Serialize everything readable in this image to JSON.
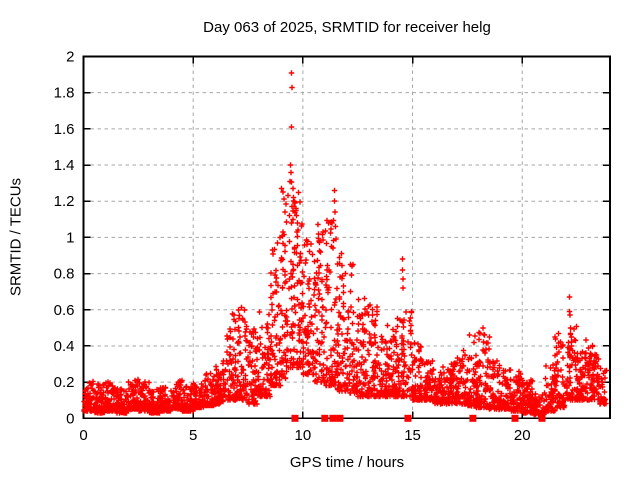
{
  "chart_data": {
    "type": "scatter",
    "title": "Day 063 of 2025, SRMTID for receiver helg",
    "xlabel": "GPS time / hours",
    "ylabel": "SRMTID / TECUs",
    "xlim": [
      0,
      24
    ],
    "ylim": [
      0,
      2
    ],
    "xticks": [
      0,
      5,
      10,
      15,
      20
    ],
    "yticks": [
      0,
      0.2,
      0.4,
      0.6,
      0.8,
      1,
      1.2,
      1.4,
      1.6,
      1.8,
      2
    ],
    "grid": true,
    "legend_position": "none",
    "marker": "plus",
    "marker_color": "#ff0000",
    "axis_color": "#000000",
    "grid_color": "#a6a6a6",
    "background": "#ffffff",
    "series": [
      {
        "name": "SRMTID",
        "encoding": "density_bins",
        "bins_format": [
          "hour_start",
          "hour_end",
          "y_min",
          "y_max",
          "count",
          "spread_exp"
        ],
        "bins": [
          [
            0.0,
            0.5,
            0.04,
            0.22,
            70,
            2.1
          ],
          [
            0.5,
            1.0,
            0.03,
            0.19,
            70,
            2.1
          ],
          [
            1.0,
            1.5,
            0.04,
            0.2,
            70,
            2.1
          ],
          [
            1.5,
            2.0,
            0.03,
            0.17,
            70,
            2.1
          ],
          [
            2.0,
            2.5,
            0.05,
            0.23,
            70,
            2.1
          ],
          [
            2.5,
            3.0,
            0.04,
            0.2,
            70,
            2.1
          ],
          [
            3.0,
            3.5,
            0.03,
            0.16,
            70,
            2.1
          ],
          [
            3.5,
            4.0,
            0.04,
            0.17,
            70,
            2.1
          ],
          [
            4.0,
            4.5,
            0.05,
            0.21,
            70,
            2.1
          ],
          [
            4.5,
            5.0,
            0.04,
            0.18,
            70,
            2.1
          ],
          [
            5.0,
            5.5,
            0.06,
            0.2,
            70,
            2.1
          ],
          [
            5.5,
            6.0,
            0.07,
            0.25,
            70,
            2.1
          ],
          [
            6.0,
            6.5,
            0.08,
            0.33,
            70,
            2.0
          ],
          [
            6.5,
            7.0,
            0.1,
            0.58,
            70,
            1.8
          ],
          [
            7.0,
            7.5,
            0.1,
            0.62,
            70,
            1.8
          ],
          [
            7.5,
            8.0,
            0.08,
            0.5,
            65,
            1.9
          ],
          [
            8.0,
            8.5,
            0.12,
            0.6,
            65,
            1.9
          ],
          [
            8.5,
            9.0,
            0.18,
            0.95,
            70,
            1.8
          ],
          [
            9.0,
            9.5,
            0.22,
            1.38,
            75,
            1.7
          ],
          [
            9.5,
            10.0,
            0.28,
            1.25,
            75,
            1.6
          ],
          [
            10.0,
            10.5,
            0.24,
            1.0,
            70,
            1.8
          ],
          [
            10.5,
            11.0,
            0.2,
            1.05,
            70,
            1.8
          ],
          [
            11.0,
            11.5,
            0.18,
            1.1,
            70,
            1.7
          ],
          [
            11.5,
            12.0,
            0.15,
            0.95,
            70,
            1.8
          ],
          [
            12.0,
            12.5,
            0.14,
            0.85,
            65,
            1.9
          ],
          [
            12.5,
            13.0,
            0.12,
            0.68,
            65,
            2.0
          ],
          [
            13.0,
            13.5,
            0.12,
            0.64,
            65,
            2.0
          ],
          [
            13.5,
            14.0,
            0.12,
            0.52,
            65,
            2.0
          ],
          [
            14.0,
            14.5,
            0.12,
            0.56,
            65,
            2.0
          ],
          [
            14.5,
            15.0,
            0.12,
            0.62,
            65,
            1.9
          ],
          [
            15.0,
            15.5,
            0.1,
            0.42,
            65,
            2.1
          ],
          [
            15.5,
            16.0,
            0.1,
            0.32,
            65,
            2.1
          ],
          [
            16.0,
            16.5,
            0.08,
            0.3,
            65,
            2.1
          ],
          [
            16.5,
            17.0,
            0.08,
            0.32,
            65,
            2.1
          ],
          [
            17.0,
            17.5,
            0.08,
            0.4,
            65,
            2.0
          ],
          [
            17.5,
            18.0,
            0.06,
            0.46,
            65,
            1.9
          ],
          [
            18.0,
            18.5,
            0.06,
            0.5,
            65,
            1.9
          ],
          [
            18.5,
            19.0,
            0.05,
            0.32,
            65,
            2.1
          ],
          [
            19.0,
            19.5,
            0.05,
            0.28,
            65,
            2.1
          ],
          [
            19.5,
            20.0,
            0.04,
            0.26,
            65,
            2.1
          ],
          [
            20.0,
            20.5,
            0.03,
            0.22,
            65,
            2.1
          ],
          [
            20.5,
            21.0,
            0.02,
            0.14,
            65,
            2.1
          ],
          [
            21.0,
            21.5,
            0.04,
            0.3,
            65,
            2.0
          ],
          [
            21.5,
            22.0,
            0.06,
            0.45,
            65,
            1.9
          ],
          [
            22.0,
            22.5,
            0.1,
            0.55,
            65,
            1.8
          ],
          [
            22.5,
            23.0,
            0.1,
            0.48,
            70,
            1.7
          ],
          [
            23.0,
            23.5,
            0.1,
            0.42,
            70,
            1.7
          ],
          [
            23.5,
            23.85,
            0.08,
            0.28,
            35,
            2.0
          ]
        ],
        "peak_points": [
          [
            9.49,
            1.91
          ],
          [
            9.5,
            1.83
          ],
          [
            9.49,
            1.61
          ],
          [
            9.44,
            1.4
          ],
          [
            9.46,
            1.36
          ],
          [
            9.41,
            1.31
          ],
          [
            9.55,
            1.27
          ],
          [
            9.58,
            1.22
          ],
          [
            9.63,
            1.19
          ],
          [
            9.69,
            1.16
          ],
          [
            9.72,
            1.12
          ],
          [
            9.76,
            1.08
          ],
          [
            9.78,
            1.04
          ],
          [
            9.1,
            1.03
          ],
          [
            8.95,
            1.0
          ],
          [
            10.68,
            1.07
          ],
          [
            10.71,
            1.02
          ],
          [
            10.73,
            0.98
          ],
          [
            11.44,
            1.26
          ],
          [
            11.45,
            1.2
          ],
          [
            11.47,
            1.14
          ],
          [
            11.49,
            1.06
          ],
          [
            11.52,
            0.99
          ],
          [
            11.3,
            0.95
          ],
          [
            14.53,
            0.88
          ],
          [
            14.54,
            0.82
          ],
          [
            14.56,
            0.77
          ],
          [
            14.57,
            0.72
          ],
          [
            22.15,
            0.67
          ],
          [
            22.16,
            0.59
          ],
          [
            22.17,
            0.57
          ],
          [
            22.19,
            0.5
          ],
          [
            22.21,
            0.47
          ],
          [
            8.62,
            0.93
          ],
          [
            8.85,
            0.97
          ],
          [
            7.35,
            0.6
          ],
          [
            6.85,
            0.57
          ],
          [
            18.2,
            0.5
          ],
          [
            17.6,
            0.46
          ],
          [
            21.65,
            0.47
          ]
        ]
      }
    ],
    "gap_markers_y0_hours": [
      9.64,
      11.0,
      11.37,
      11.69,
      14.79,
      17.75,
      19.67,
      20.9
    ]
  }
}
